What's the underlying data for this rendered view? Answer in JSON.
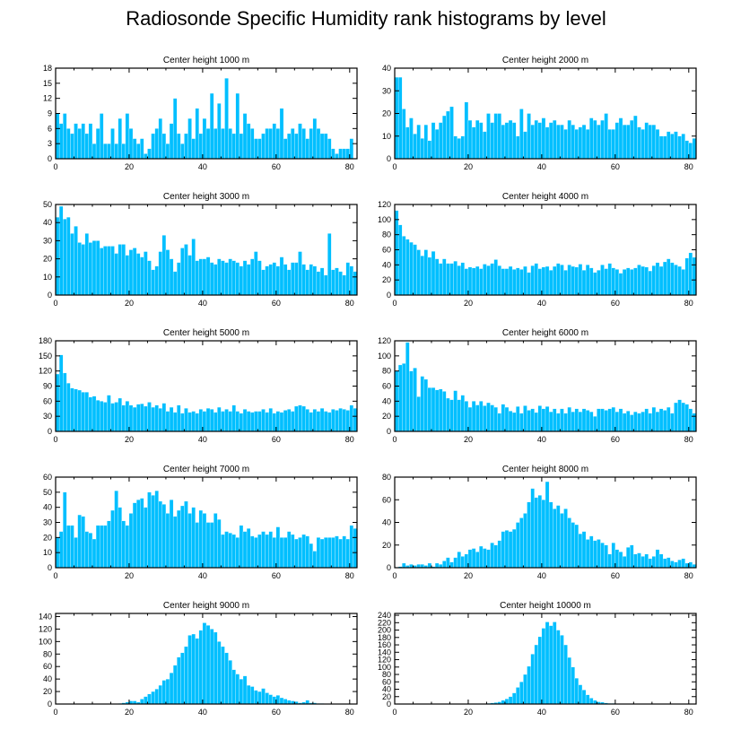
{
  "title": "Radiosonde Specific Humidity rank histograms by level",
  "colors": {
    "bar": "#00bfff",
    "frame": "#000000"
  },
  "chart_data": [
    {
      "type": "bar",
      "title": "Center height 1000 m",
      "xlabel": "",
      "ylabel": "",
      "xlim": [
        0,
        82
      ],
      "xticks": [
        0,
        20,
        40,
        60,
        80
      ],
      "ylim": [
        0,
        18
      ],
      "yticks": [
        0,
        3,
        6,
        9,
        12,
        15,
        18
      ],
      "values": [
        9,
        7,
        9,
        6,
        5,
        7,
        6,
        7,
        5,
        7,
        3,
        6,
        9,
        3,
        3,
        6,
        3,
        8,
        3,
        9,
        6,
        4,
        3,
        4,
        1,
        2,
        5,
        6,
        8,
        5,
        3,
        7,
        12,
        5,
        3,
        5,
        8,
        4,
        10,
        5,
        8,
        6,
        13,
        6,
        11,
        6,
        16,
        6,
        5,
        13,
        5,
        9,
        7,
        6,
        4,
        4,
        5,
        6,
        6,
        7,
        6,
        10,
        4,
        5,
        6,
        5,
        7,
        6,
        4,
        6,
        8,
        6,
        5,
        5,
        4,
        2,
        1,
        2,
        2,
        2,
        4
      ]
    },
    {
      "type": "bar",
      "title": "Center height 2000 m",
      "xlabel": "",
      "ylabel": "",
      "xlim": [
        0,
        82
      ],
      "xticks": [
        0,
        20,
        40,
        60,
        80
      ],
      "ylim": [
        0,
        40
      ],
      "yticks": [
        0,
        10,
        20,
        30,
        40
      ],
      "values": [
        36,
        36,
        22,
        14,
        18,
        11,
        15,
        9,
        15,
        8,
        16,
        13,
        16,
        19,
        21,
        23,
        10,
        9,
        10,
        25,
        17,
        14,
        17,
        16,
        12,
        20,
        16,
        20,
        20,
        15,
        16,
        17,
        16,
        10,
        22,
        12,
        20,
        15,
        17,
        16,
        18,
        14,
        16,
        17,
        15,
        15,
        13,
        17,
        15,
        13,
        14,
        15,
        13,
        18,
        17,
        15,
        17,
        20,
        13,
        13,
        16,
        18,
        15,
        15,
        17,
        19,
        14,
        13,
        16,
        15,
        15,
        13,
        10,
        10,
        12,
        11,
        12,
        10,
        11,
        8,
        7,
        9
      ]
    },
    {
      "type": "bar",
      "title": "Center height 3000 m",
      "xlabel": "",
      "ylabel": "",
      "xlim": [
        0,
        82
      ],
      "xticks": [
        0,
        20,
        40,
        60,
        80
      ],
      "ylim": [
        0,
        50
      ],
      "yticks": [
        0,
        10,
        20,
        30,
        40,
        50
      ],
      "values": [
        43,
        49,
        42,
        43,
        34,
        38,
        29,
        28,
        34,
        29,
        30,
        30,
        26,
        27,
        27,
        27,
        23,
        28,
        28,
        22,
        25,
        26,
        23,
        21,
        24,
        19,
        14,
        16,
        24,
        33,
        25,
        20,
        13,
        18,
        26,
        28,
        22,
        31,
        19,
        20,
        20,
        21,
        18,
        17,
        20,
        19,
        18,
        20,
        19,
        18,
        16,
        19,
        17,
        20,
        24,
        19,
        14,
        16,
        17,
        18,
        16,
        21,
        17,
        14,
        18,
        18,
        24,
        17,
        14,
        17,
        16,
        13,
        15,
        11,
        34,
        14,
        15,
        13,
        11,
        18,
        16,
        13
      ]
    },
    {
      "type": "bar",
      "title": "Center height 4000 m",
      "xlabel": "",
      "ylabel": "",
      "xlim": [
        0,
        82
      ],
      "xticks": [
        0,
        20,
        40,
        60,
        80
      ],
      "ylim": [
        0,
        120
      ],
      "yticks": [
        0,
        20,
        40,
        60,
        80,
        100,
        120
      ],
      "values": [
        112,
        93,
        78,
        74,
        70,
        67,
        60,
        52,
        60,
        50,
        58,
        48,
        42,
        48,
        42,
        42,
        45,
        39,
        43,
        35,
        37,
        36,
        38,
        35,
        41,
        39,
        42,
        47,
        39,
        35,
        35,
        38,
        34,
        36,
        34,
        38,
        30,
        39,
        42,
        35,
        37,
        38,
        33,
        38,
        42,
        40,
        33,
        40,
        38,
        37,
        41,
        33,
        40,
        36,
        30,
        33,
        40,
        35,
        42,
        36,
        34,
        29,
        34,
        36,
        34,
        36,
        40,
        38,
        37,
        32,
        39,
        43,
        38,
        44,
        48,
        43,
        40,
        38,
        34,
        49,
        56,
        50
      ]
    },
    {
      "type": "bar",
      "title": "Center height 5000 m",
      "xlabel": "",
      "ylabel": "",
      "xlim": [
        0,
        82
      ],
      "xticks": [
        0,
        20,
        40,
        60,
        80
      ],
      "ylim": [
        0,
        180
      ],
      "yticks": [
        0,
        30,
        60,
        90,
        120,
        150,
        180
      ],
      "values": [
        114,
        152,
        116,
        96,
        86,
        84,
        82,
        78,
        78,
        68,
        70,
        62,
        60,
        58,
        72,
        56,
        58,
        66,
        52,
        60,
        52,
        48,
        54,
        55,
        50,
        58,
        48,
        52,
        46,
        56,
        40,
        48,
        38,
        52,
        36,
        46,
        38,
        40,
        36,
        44,
        40,
        46,
        44,
        38,
        48,
        40,
        44,
        40,
        52,
        40,
        36,
        44,
        40,
        38,
        40,
        40,
        44,
        38,
        46,
        36,
        40,
        38,
        42,
        44,
        40,
        50,
        52,
        50,
        44,
        38,
        44,
        40,
        46,
        40,
        38,
        44,
        42,
        46,
        44,
        42,
        52,
        46
      ]
    },
    {
      "type": "bar",
      "title": "Center height 6000 m",
      "xlabel": "",
      "ylabel": "",
      "xlim": [
        0,
        82
      ],
      "xticks": [
        0,
        20,
        40,
        60,
        80
      ],
      "ylim": [
        0,
        120
      ],
      "yticks": [
        0,
        20,
        40,
        60,
        80,
        100,
        120
      ],
      "values": [
        80,
        88,
        90,
        118,
        80,
        84,
        46,
        73,
        69,
        58,
        58,
        55,
        56,
        53,
        44,
        42,
        54,
        42,
        48,
        40,
        32,
        40,
        35,
        40,
        34,
        38,
        35,
        32,
        24,
        36,
        32,
        27,
        25,
        33,
        24,
        34,
        28,
        30,
        25,
        34,
        30,
        33,
        26,
        30,
        24,
        30,
        24,
        32,
        26,
        30,
        26,
        30,
        28,
        26,
        20,
        30,
        30,
        28,
        30,
        32,
        26,
        30,
        24,
        27,
        22,
        26,
        24,
        26,
        30,
        24,
        32,
        26,
        30,
        28,
        32,
        24,
        38,
        42,
        38,
        36,
        30,
        24
      ]
    },
    {
      "type": "bar",
      "title": "Center height 7000 m",
      "xlabel": "",
      "ylabel": "",
      "xlim": [
        0,
        82
      ],
      "xticks": [
        0,
        20,
        40,
        60,
        80
      ],
      "ylim": [
        0,
        60
      ],
      "yticks": [
        0,
        10,
        20,
        30,
        40,
        50,
        60
      ],
      "values": [
        20,
        24,
        50,
        28,
        28,
        20,
        35,
        34,
        24,
        23,
        19,
        28,
        28,
        28,
        31,
        38,
        51,
        40,
        31,
        28,
        36,
        43,
        45,
        46,
        40,
        50,
        48,
        51,
        44,
        42,
        36,
        45,
        34,
        38,
        41,
        44,
        36,
        40,
        30,
        38,
        36,
        30,
        30,
        36,
        32,
        22,
        24,
        23,
        22,
        20,
        28,
        24,
        26,
        21,
        20,
        22,
        24,
        22,
        24,
        20,
        27,
        20,
        20,
        24,
        22,
        19,
        20,
        22,
        21,
        16,
        11,
        20,
        19,
        20,
        20,
        20,
        21,
        19,
        21,
        19,
        28,
        26
      ]
    },
    {
      "type": "bar",
      "title": "Center height 8000 m",
      "xlabel": "",
      "ylabel": "",
      "xlim": [
        0,
        82
      ],
      "xticks": [
        0,
        20,
        40,
        60,
        80
      ],
      "ylim": [
        0,
        80
      ],
      "yticks": [
        0,
        20,
        40,
        60,
        80
      ],
      "values": [
        0,
        1,
        4,
        2,
        3,
        2,
        3,
        3,
        2,
        4,
        1,
        4,
        3,
        6,
        9,
        5,
        9,
        14,
        10,
        12,
        16,
        17,
        14,
        19,
        17,
        16,
        22,
        20,
        24,
        32,
        33,
        32,
        34,
        40,
        44,
        48,
        58,
        70,
        62,
        64,
        60,
        76,
        58,
        52,
        55,
        48,
        52,
        44,
        40,
        38,
        30,
        32,
        25,
        28,
        24,
        25,
        22,
        20,
        12,
        22,
        16,
        14,
        10,
        18,
        20,
        12,
        13,
        10,
        12,
        8,
        10,
        16,
        12,
        8,
        9,
        6,
        5,
        7,
        8,
        4,
        5,
        3
      ]
    },
    {
      "type": "bar",
      "title": "Center height 9000 m",
      "xlabel": "",
      "ylabel": "",
      "xlim": [
        0,
        82
      ],
      "xticks": [
        0,
        20,
        40,
        60,
        80
      ],
      "ylim": [
        0,
        145
      ],
      "yticks": [
        0,
        20,
        40,
        60,
        80,
        100,
        120,
        140
      ],
      "values": [
        0,
        0,
        0,
        0,
        0,
        0,
        0,
        0,
        0,
        0,
        0,
        0,
        0,
        0,
        0,
        0,
        0,
        1,
        2,
        3,
        5,
        5,
        3,
        8,
        12,
        16,
        20,
        24,
        30,
        38,
        40,
        50,
        62,
        75,
        82,
        92,
        110,
        112,
        105,
        118,
        130,
        126,
        120,
        115,
        100,
        92,
        82,
        70,
        55,
        48,
        40,
        45,
        30,
        28,
        22,
        20,
        25,
        18,
        15,
        12,
        14,
        10,
        8,
        6,
        5,
        4,
        2,
        3,
        6,
        2,
        2,
        1,
        1,
        0,
        0,
        0,
        0,
        0,
        0,
        0,
        0,
        0
      ]
    },
    {
      "type": "bar",
      "title": "Center height 10000 m",
      "xlabel": "",
      "ylabel": "",
      "xlim": [
        0,
        82
      ],
      "xticks": [
        0,
        20,
        40,
        60,
        80
      ],
      "ylim": [
        0,
        245
      ],
      "yticks": [
        0,
        20,
        40,
        60,
        80,
        100,
        120,
        140,
        160,
        180,
        200,
        220,
        240
      ],
      "values": [
        0,
        0,
        0,
        0,
        0,
        0,
        0,
        0,
        0,
        0,
        0,
        0,
        0,
        0,
        0,
        0,
        0,
        0,
        0,
        0,
        0,
        0,
        0,
        0,
        1,
        2,
        3,
        4,
        6,
        10,
        14,
        20,
        30,
        45,
        60,
        80,
        102,
        135,
        160,
        182,
        205,
        222,
        212,
        222,
        200,
        186,
        160,
        126,
        100,
        70,
        52,
        38,
        25,
        16,
        10,
        6,
        5,
        3,
        2,
        2,
        1,
        1,
        1,
        0,
        0,
        0,
        0,
        0,
        0,
        0,
        0,
        0,
        0,
        0,
        0,
        0,
        0,
        0,
        0,
        0,
        0,
        0
      ]
    }
  ]
}
